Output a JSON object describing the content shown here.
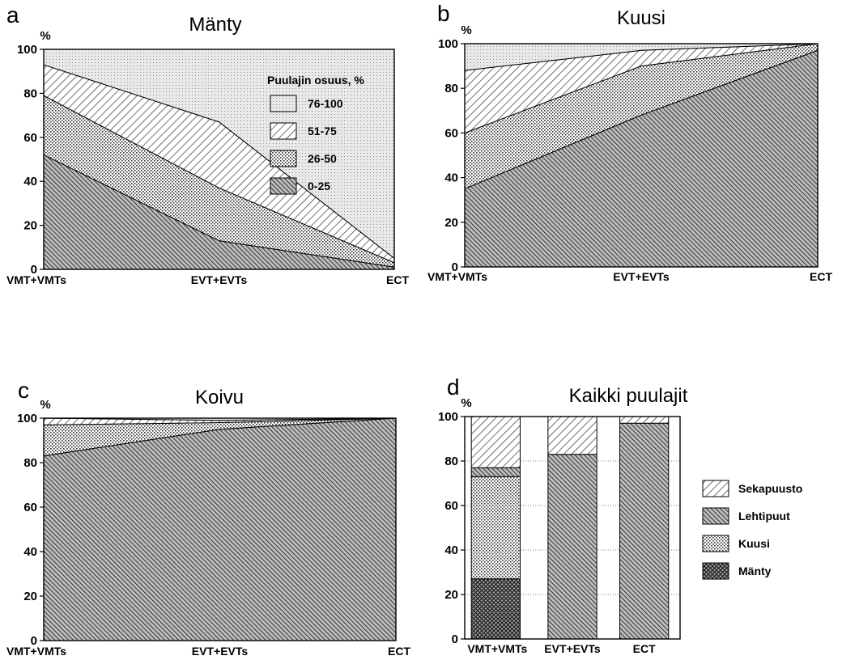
{
  "chart_data": [
    {
      "panel": "a",
      "title": "Mänty",
      "type": "area",
      "ylabel": "%",
      "ylim": [
        0,
        100
      ],
      "categories": [
        "VMT+VMTs",
        "EVT+EVTs",
        "ECT"
      ],
      "legend_title": "Puulajin osuus, %",
      "legend_position": "top-right",
      "series": [
        {
          "name": "0-25",
          "pattern": "dense-hatch",
          "values": [
            52,
            13,
            1
          ]
        },
        {
          "name": "26-50",
          "pattern": "dots",
          "values": [
            27,
            24,
            2
          ]
        },
        {
          "name": "51-75",
          "pattern": "diagonal-hatch",
          "values": [
            14,
            30,
            2
          ]
        },
        {
          "name": "76-100",
          "pattern": "fine-dots",
          "values": [
            7,
            33,
            95
          ]
        }
      ]
    },
    {
      "panel": "b",
      "title": "Kuusi",
      "type": "area",
      "ylabel": "%",
      "ylim": [
        0,
        100
      ],
      "categories": [
        "VMT+VMTs",
        "EVT+EVTs",
        "ECT"
      ],
      "series": [
        {
          "name": "0-25",
          "pattern": "dense-hatch",
          "values": [
            35,
            68,
            97
          ]
        },
        {
          "name": "26-50",
          "pattern": "dots",
          "values": [
            25,
            22,
            3
          ]
        },
        {
          "name": "51-75",
          "pattern": "diagonal-hatch",
          "values": [
            28,
            7,
            0
          ]
        },
        {
          "name": "76-100",
          "pattern": "fine-dots",
          "values": [
            12,
            3,
            0
          ]
        }
      ]
    },
    {
      "panel": "c",
      "title": "Koivu",
      "type": "area",
      "ylabel": "%",
      "ylim": [
        0,
        100
      ],
      "categories": [
        "VMT+VMTs",
        "EVT+EVTs",
        "ECT"
      ],
      "series": [
        {
          "name": "0-25",
          "pattern": "dense-hatch",
          "values": [
            83,
            95,
            100
          ]
        },
        {
          "name": "26-50",
          "pattern": "dots",
          "values": [
            14,
            3,
            0
          ]
        },
        {
          "name": "51-75",
          "pattern": "diagonal-hatch",
          "values": [
            3,
            1,
            0
          ]
        },
        {
          "name": "76-100",
          "pattern": "fine-dots",
          "values": [
            0,
            1,
            0
          ]
        }
      ]
    },
    {
      "panel": "d",
      "title": "Kaikki puulajit",
      "type": "bar",
      "stacked": true,
      "ylabel": "%",
      "ylim": [
        0,
        100
      ],
      "grid": "dotted-horizontal",
      "categories": [
        "VMT+VMTs",
        "EVT+EVTs",
        "ECT"
      ],
      "legend_position": "right",
      "series": [
        {
          "name": "Mänty",
          "pattern": "crosshatch",
          "values": [
            27,
            0,
            0
          ]
        },
        {
          "name": "Kuusi",
          "pattern": "dots",
          "values": [
            46,
            0,
            0
          ]
        },
        {
          "name": "Lehtipuut",
          "pattern": "dense-hatch",
          "values": [
            4,
            83,
            97
          ]
        },
        {
          "name": "Sekapuusto",
          "pattern": "diagonal-hatch",
          "values": [
            23,
            17,
            3
          ]
        }
      ]
    }
  ],
  "yticks": [
    0,
    20,
    40,
    60,
    80,
    100
  ]
}
